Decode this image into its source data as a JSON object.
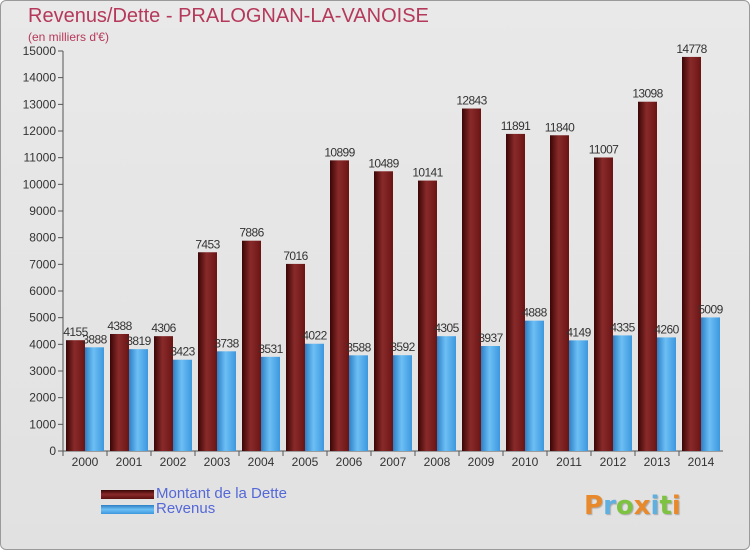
{
  "chart_data": {
    "type": "bar",
    "title": "Revenus/Dette - PRALOGNAN-LA-VANOISE",
    "subtitle": "(en milliers d'€)",
    "categories": [
      "2000",
      "2001",
      "2002",
      "2003",
      "2004",
      "2005",
      "2006",
      "2007",
      "2008",
      "2009",
      "2010",
      "2011",
      "2012",
      "2013",
      "2014"
    ],
    "series": [
      {
        "name": "Montant de la Dette",
        "color": "#7a1a1a",
        "values": [
          4155,
          4388,
          4306,
          7453,
          7886,
          7016,
          10899,
          10489,
          10141,
          12843,
          11891,
          11840,
          11007,
          13098,
          14778
        ]
      },
      {
        "name": "Revenus",
        "color": "#4aa3e6",
        "values": [
          3888,
          3819,
          3423,
          3738,
          3531,
          4022,
          3588,
          3592,
          4305,
          3937,
          4888,
          4149,
          4335,
          4260,
          5009
        ]
      }
    ],
    "ylim": [
      0,
      15000
    ],
    "yticks": [
      0,
      1000,
      2000,
      3000,
      4000,
      5000,
      6000,
      7000,
      8000,
      9000,
      10000,
      11000,
      12000,
      13000,
      14000,
      15000
    ],
    "grid": false,
    "legend_position": "bottom-left"
  },
  "logo": {
    "letters": [
      "P",
      "r",
      "o",
      "x",
      "i",
      "t",
      "i"
    ],
    "colors": [
      "#e8892b",
      "#5fb0e0",
      "#7ec242",
      "#e8892b",
      "#5fb0e0",
      "#7ec242",
      "#e8892b"
    ]
  }
}
